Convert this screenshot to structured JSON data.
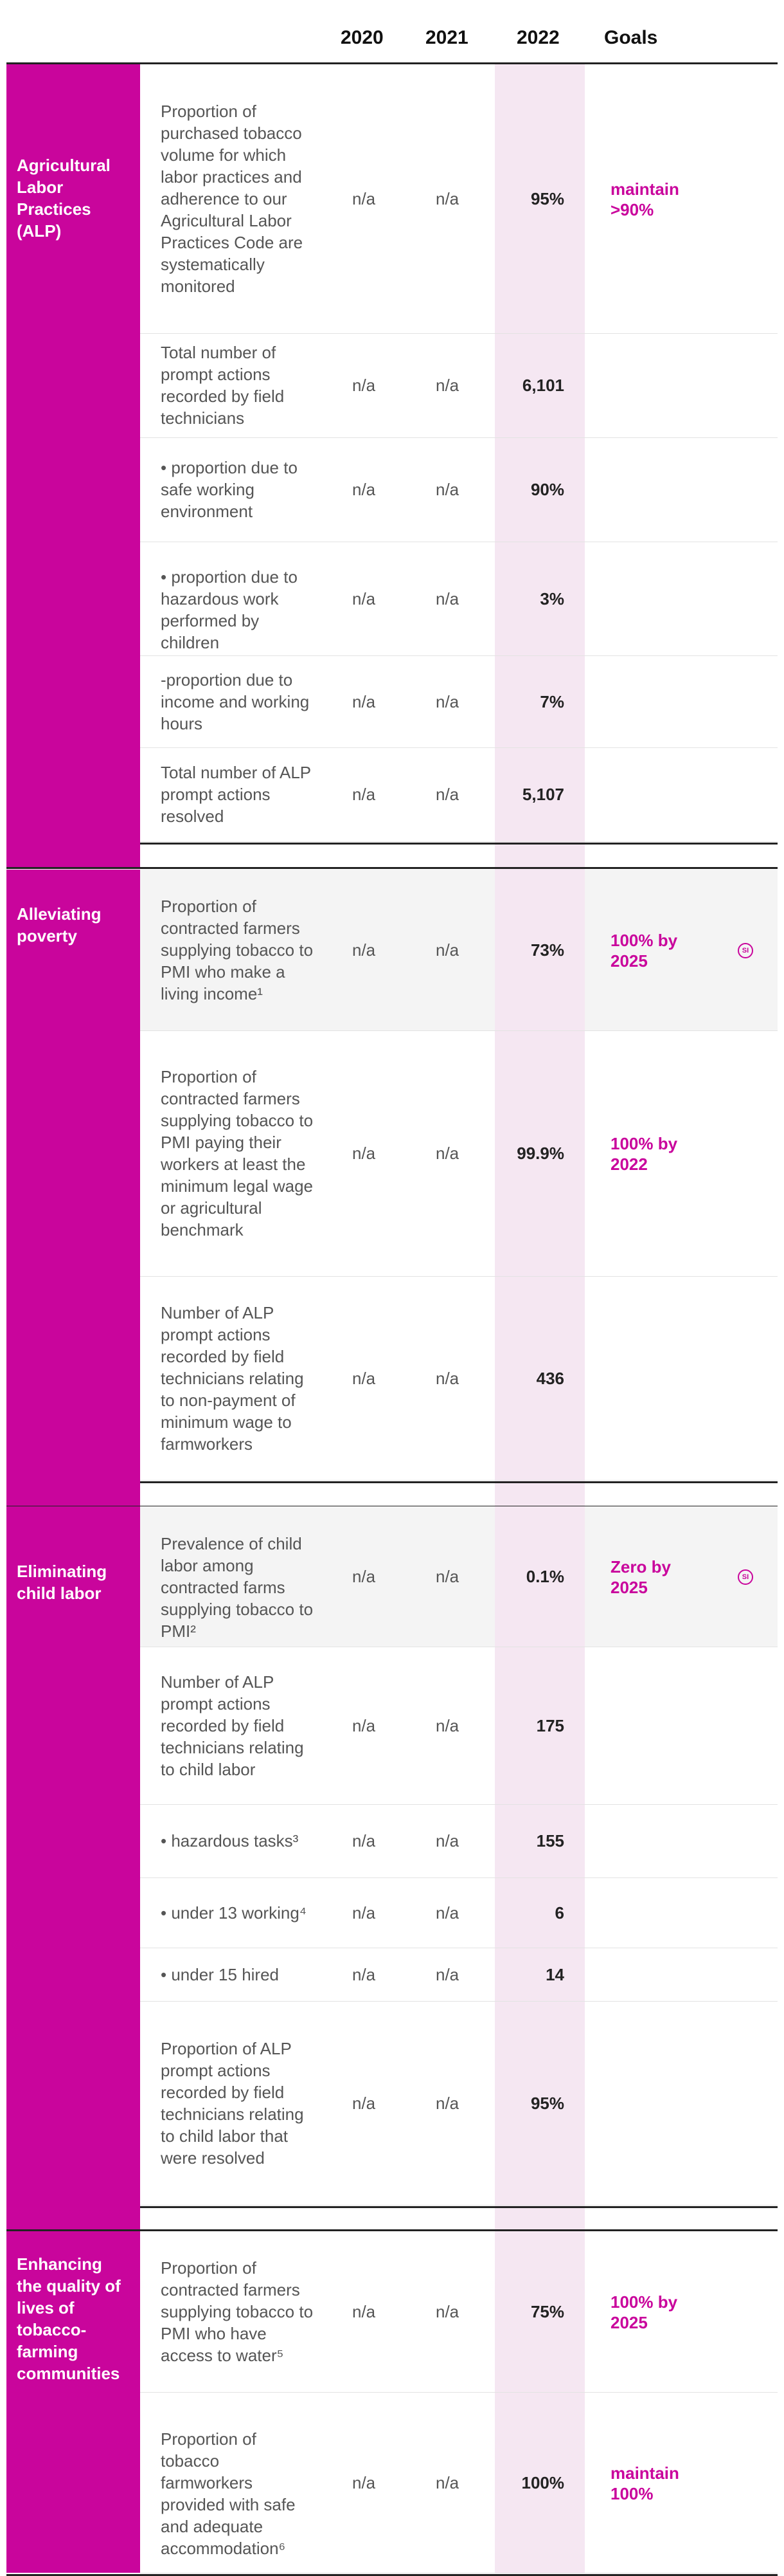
{
  "header": {
    "y2020": "2020",
    "y2021": "2021",
    "y2022": "2022",
    "goals": "Goals"
  },
  "sections": [
    {
      "category": "Agricultural Labor Practices (ALP)",
      "rows": [
        {
          "desc": "Proportion of purchased tobacco volume for which labor practices and adherence to our Agricultural Labor Practices Code are systematically monitored",
          "v2020": "n/a",
          "v2021": "n/a",
          "v2022": "95%",
          "goal": "maintain >90%",
          "sdg": ""
        },
        {
          "desc": "Total number of prompt actions recorded by field technicians",
          "v2020": "n/a",
          "v2021": "n/a",
          "v2022": "6,101",
          "goal": "",
          "sdg": ""
        },
        {
          "desc": "• proportion due to safe working environment",
          "v2020": "n/a",
          "v2021": "n/a",
          "v2022": "90%",
          "goal": "",
          "sdg": ""
        },
        {
          "desc": "• proportion due to hazardous work performed by children",
          "v2020": "n/a",
          "v2021": "n/a",
          "v2022": "3%",
          "goal": "",
          "sdg": ""
        },
        {
          "desc": "-proportion due to income and working hours",
          "v2020": "n/a",
          "v2021": "n/a",
          "v2022": "7%",
          "goal": "",
          "sdg": ""
        },
        {
          "desc": "Total number of ALP prompt actions resolved",
          "v2020": "n/a",
          "v2021": "n/a",
          "v2022": "5,107",
          "goal": "",
          "sdg": ""
        }
      ]
    },
    {
      "category": "Alleviating poverty",
      "rows": [
        {
          "desc": "Proportion of contracted farmers supplying tobacco to PMI who make a living income¹",
          "v2020": "n/a",
          "v2021": "n/a",
          "v2022": "73%",
          "goal": "100% by 2025",
          "sdg": "SI"
        },
        {
          "desc": "Proportion of contracted farmers supplying tobacco to PMI paying their workers at least the minimum legal wage or agricultural benchmark",
          "v2020": "n/a",
          "v2021": "n/a",
          "v2022": "99.9%",
          "goal": "100% by 2022",
          "sdg": ""
        },
        {
          "desc": "Number of ALP prompt actions recorded by field technicians relating to non-payment of minimum wage to farmworkers",
          "v2020": "n/a",
          "v2021": "n/a",
          "v2022": "436",
          "goal": "",
          "sdg": ""
        }
      ]
    },
    {
      "category": "Eliminating child labor",
      "rows": [
        {
          "desc": "Prevalence of child labor among contracted farms supplying tobacco to PMI²",
          "v2020": "n/a",
          "v2021": "n/a",
          "v2022": "0.1%",
          "goal": "Zero by 2025",
          "sdg": "SI"
        },
        {
          "desc": "Number of ALP prompt actions recorded by field technicians relating to child labor",
          "v2020": "n/a",
          "v2021": "n/a",
          "v2022": "175",
          "goal": "",
          "sdg": ""
        },
        {
          "desc": "• hazardous tasks³",
          "v2020": "n/a",
          "v2021": "n/a",
          "v2022": "155",
          "goal": "",
          "sdg": ""
        },
        {
          "desc": "• under 13 working⁴",
          "v2020": "n/a",
          "v2021": "n/a",
          "v2022": "6",
          "goal": "",
          "sdg": ""
        },
        {
          "desc": "• under 15 hired",
          "v2020": "n/a",
          "v2021": "n/a",
          "v2022": "14",
          "goal": "",
          "sdg": ""
        },
        {
          "desc": "Proportion of ALP prompt actions recorded by field technicians relating to child labor that were resolved",
          "v2020": "n/a",
          "v2021": "n/a",
          "v2022": "95%",
          "goal": "",
          "sdg": ""
        }
      ]
    },
    {
      "category": "Enhancing the quality of lives of tobacco-farming communities",
      "rows": [
        {
          "desc": "Proportion of contracted farmers supplying tobacco to PMI who have access to water⁵",
          "v2020": "n/a",
          "v2021": "n/a",
          "v2022": "75%",
          "goal": "100% by 2025",
          "sdg": ""
        },
        {
          "desc": "Proportion of tobacco farmworkers provided with safe and adequate accommodation⁶",
          "v2020": "n/a",
          "v2021": "n/a",
          "v2022": "100%",
          "goal": "maintain 100%",
          "sdg": ""
        }
      ]
    }
  ]
}
